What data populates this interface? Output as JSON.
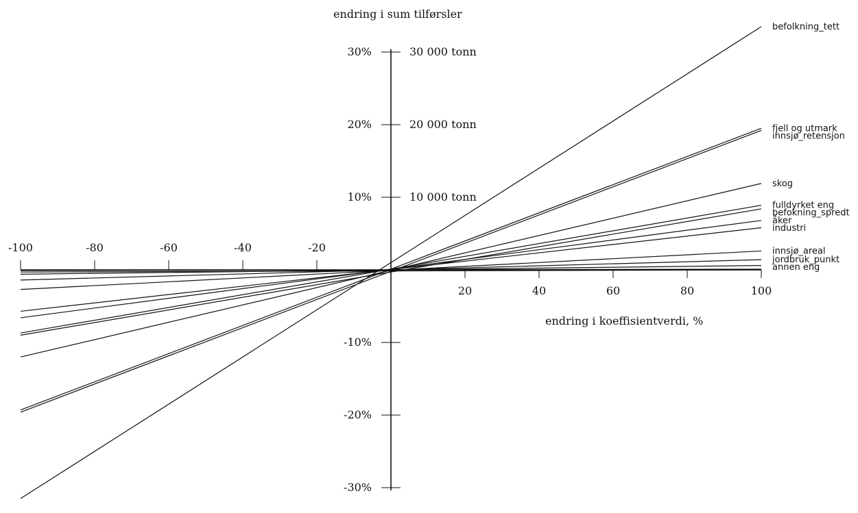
{
  "chart_data": {
    "type": "line",
    "title": "",
    "ylabel": "endring i sum tilførsler",
    "xlabel": "endring i koeffisientverdi, %",
    "xlim": [
      -100,
      100
    ],
    "ylim": [
      -30,
      30
    ],
    "x_ticks": [
      -100,
      -80,
      -60,
      -40,
      -20,
      20,
      40,
      60,
      80,
      100
    ],
    "y_ticks": [
      {
        "value": 30,
        "label": "30%",
        "tonn": "30 000 tonn"
      },
      {
        "value": 20,
        "label": "20%",
        "tonn": "20 000 tonn"
      },
      {
        "value": 10,
        "label": "10%",
        "tonn": "10 000 tonn"
      },
      {
        "value": -10,
        "label": "-10%",
        "tonn": ""
      },
      {
        "value": -20,
        "label": "-20%",
        "tonn": ""
      },
      {
        "value": -30,
        "label": "-30%",
        "tonn": ""
      }
    ],
    "series": [
      {
        "name": "befolkning_tett",
        "x": [
          -100,
          100
        ],
        "y": [
          -31.5,
          33.5
        ]
      },
      {
        "name": "fjell og utmark",
        "x": [
          -100,
          100
        ],
        "y": [
          -19.3,
          19.5
        ]
      },
      {
        "name": "innsjø_retensjon",
        "x": [
          -100,
          100
        ],
        "y": [
          -19.6,
          19.2
        ]
      },
      {
        "name": "skog",
        "x": [
          -100,
          100
        ],
        "y": [
          -12.0,
          11.9
        ]
      },
      {
        "name": "fulldyrket eng",
        "x": [
          -100,
          100
        ],
        "y": [
          -8.7,
          8.9
        ]
      },
      {
        "name": "befokning_spredt",
        "x": [
          -100,
          100
        ],
        "y": [
          -9.0,
          8.4
        ]
      },
      {
        "name": "åker",
        "x": [
          -100,
          100
        ],
        "y": [
          -6.6,
          6.8
        ]
      },
      {
        "name": "industri",
        "x": [
          -100,
          100
        ],
        "y": [
          -5.7,
          5.8
        ]
      },
      {
        "name": "innsjø_areal",
        "x": [
          -100,
          100
        ],
        "y": [
          -2.7,
          2.6
        ]
      },
      {
        "name": "jordbruk_punkt",
        "x": [
          -100,
          100
        ],
        "y": [
          -1.4,
          1.4
        ]
      },
      {
        "name": "annen eng",
        "x": [
          -100,
          100
        ],
        "y": [
          -0.6,
          0.6
        ]
      },
      {
        "name": "",
        "x": [
          -100,
          100
        ],
        "y": [
          -0.3,
          0.0
        ]
      },
      {
        "name": "",
        "x": [
          -100,
          100
        ],
        "y": [
          -0.1,
          0.1
        ]
      }
    ]
  }
}
